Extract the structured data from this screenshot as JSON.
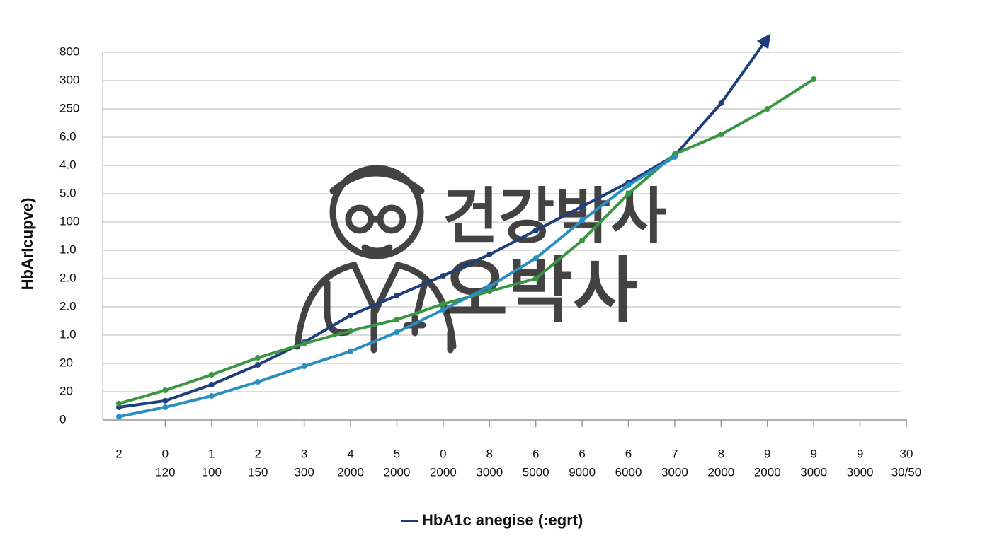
{
  "chart_data": {
    "type": "line",
    "y_label": "HbArIcupve)",
    "categories": [
      [
        "2"
      ],
      [
        "0",
        "120"
      ],
      [
        "1",
        "100"
      ],
      [
        "2",
        "150"
      ],
      [
        "3",
        "300"
      ],
      [
        "4",
        "2000"
      ],
      [
        "5",
        "2000"
      ],
      [
        "0",
        "2000"
      ],
      [
        "8",
        "3000"
      ],
      [
        "6",
        "5000"
      ],
      [
        "6",
        "9000"
      ],
      [
        "6",
        "6000"
      ],
      [
        "7",
        "3000"
      ],
      [
        "8",
        "2000"
      ],
      [
        "9",
        "2000"
      ],
      [
        "9",
        "3000"
      ],
      [
        "9",
        "3000"
      ],
      [
        "30",
        "30/50"
      ]
    ],
    "series": [
      {
        "name": "HbA1c anegise (:egrt)",
        "color": "#1f3f7a",
        "arrow": true,
        "values": [
          0.45,
          0.68,
          1.25,
          1.95,
          2.75,
          3.7,
          4.4,
          5.1,
          5.85,
          6.7,
          7.55,
          8.4,
          9.35,
          11.2,
          13.5,
          null,
          null,
          null
        ]
      },
      {
        "color": "#3a9640",
        "values": [
          0.58,
          1.05,
          1.6,
          2.2,
          2.7,
          3.15,
          3.55,
          4.1,
          4.55,
          5.0,
          6.35,
          8.0,
          9.4,
          10.1,
          11.0,
          12.05,
          null,
          null
        ]
      },
      {
        "color": "#2a8fc0",
        "values": [
          0.12,
          0.45,
          0.85,
          1.35,
          1.9,
          2.43,
          3.1,
          3.9,
          4.72,
          5.72,
          7.05,
          8.3,
          9.3,
          null,
          null,
          null,
          null,
          null
        ]
      }
    ],
    "ylim": [
      0,
      13.5
    ],
    "yticks": [
      0,
      {
        "value": 1,
        "label": "20"
      },
      {
        "value": 2,
        "label": "20"
      },
      {
        "value": 3,
        "label": "1.0"
      },
      {
        "value": 4,
        "label": "2.0"
      },
      {
        "value": 5,
        "label": "2.0"
      },
      {
        "value": 6,
        "label": "1.0"
      },
      {
        "value": 7,
        "label": "100"
      },
      {
        "value": 8,
        "label": "5.0"
      },
      {
        "value": 9,
        "label": "4.0"
      },
      {
        "value": 10,
        "label": "6.0"
      },
      {
        "value": 11,
        "label": "250"
      },
      {
        "value": 12,
        "label": "300"
      },
      {
        "value": 13,
        "label": "800"
      }
    ],
    "grid": true
  },
  "watermark": [
    "건강박사",
    "오박사"
  ]
}
